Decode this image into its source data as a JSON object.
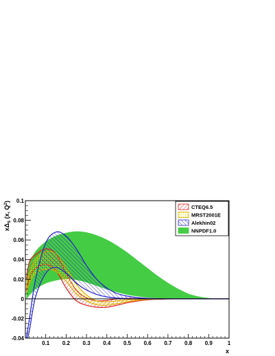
{
  "chart_data": {
    "type": "area",
    "xlabel": "x",
    "ylabel_parts": {
      "base": "xΔ",
      "sub": "s",
      "rest": " (x, Q",
      "sup": "2",
      "end": ")"
    },
    "xlim": [
      0,
      1
    ],
    "ylim": [
      -0.04,
      0.1
    ],
    "x_ticks": [
      0.1,
      0.2,
      0.3,
      0.4,
      0.5,
      0.6,
      0.7,
      0.8,
      0.9,
      1
    ],
    "x_tick_labels": [
      "0.1",
      "0.2",
      "0.3",
      "0.4",
      "0.5",
      "0.6",
      "0.7",
      "0.8",
      "0.9",
      "1"
    ],
    "y_ticks": [
      -0.04,
      -0.02,
      0,
      0.02,
      0.04,
      0.06,
      0.08,
      0.1
    ],
    "y_tick_labels": [
      "-0.04",
      "-0.02",
      "0",
      "0.02",
      "0.04",
      "0.06",
      "0.08",
      "0.1"
    ],
    "legend_position": "top-right",
    "series": [
      {
        "name": "NNPDF1.0",
        "style": "solid",
        "fill": "#44cc44",
        "edge": "#44cc44",
        "x": [
          0.005,
          0.02,
          0.05,
          0.1,
          0.15,
          0.2,
          0.25,
          0.3,
          0.35,
          0.4,
          0.45,
          0.5,
          0.55,
          0.6,
          0.65,
          0.7,
          0.75,
          0.8,
          0.85,
          0.9,
          0.95,
          1.0
        ],
        "upper": [
          0.025,
          0.036,
          0.048,
          0.058,
          0.064,
          0.067,
          0.0685,
          0.0675,
          0.0645,
          0.06,
          0.054,
          0.047,
          0.039,
          0.031,
          0.023,
          0.016,
          0.01,
          0.005,
          0.0022,
          0.0006,
          0.0001,
          0.0
        ],
        "lower": [
          0.0,
          0.004,
          0.01,
          0.016,
          0.019,
          0.0205,
          0.0195,
          0.017,
          0.0135,
          0.01,
          0.007,
          0.0045,
          0.0028,
          0.0016,
          0.0009,
          0.0005,
          0.0002,
          0.0001,
          0.0,
          0.0,
          0.0,
          0.0
        ]
      },
      {
        "name": "CTEQ6.5",
        "style": "hatch",
        "fill": "#dd2222",
        "edge": "#dd2222",
        "x": [
          0.005,
          0.02,
          0.05,
          0.1,
          0.15,
          0.2,
          0.25,
          0.3,
          0.35,
          0.4,
          0.45,
          0.5,
          0.55,
          0.6,
          0.65,
          0.7,
          0.75,
          0.8,
          0.85,
          0.9,
          0.95,
          1.0
        ],
        "upper": [
          0.02,
          0.038,
          0.045,
          0.051,
          0.046,
          0.026,
          0.009,
          0.001,
          -0.002,
          -0.0015,
          0.0,
          0.0005,
          0.0003,
          0.0001,
          0.0,
          0.0,
          0.0,
          0.0,
          0.0,
          0.0,
          0.0,
          0.0
        ],
        "lower": [
          0.008,
          0.021,
          0.031,
          0.035,
          0.029,
          0.011,
          -0.002,
          -0.0065,
          -0.0085,
          -0.0085,
          -0.0065,
          -0.004,
          -0.0022,
          -0.001,
          -0.0004,
          -0.0001,
          0.0,
          0.0,
          0.0,
          0.0,
          0.0,
          0.0
        ]
      },
      {
        "name": "MRST2001E",
        "style": "dots",
        "fill": "#e6e600",
        "edge": "#ddaa00",
        "x": [
          0.005,
          0.02,
          0.05,
          0.1,
          0.15,
          0.2,
          0.25,
          0.3,
          0.35,
          0.4,
          0.45,
          0.5,
          0.55,
          0.6,
          0.65,
          0.7,
          0.75,
          0.8,
          0.85,
          0.9,
          0.95,
          1.0
        ],
        "upper": [
          0.012,
          0.026,
          0.04,
          0.048,
          0.046,
          0.032,
          0.015,
          0.004,
          -0.002,
          -0.003,
          -0.002,
          -0.001,
          -0.0005,
          0.0,
          0.0,
          0.0,
          0.0,
          0.0,
          0.0,
          0.0,
          0.0,
          0.0
        ],
        "lower": [
          0.006,
          0.016,
          0.026,
          0.03,
          0.028,
          0.018,
          0.005,
          -0.002,
          -0.006,
          -0.0065,
          -0.005,
          -0.003,
          -0.0015,
          -0.0006,
          -0.0002,
          0.0,
          0.0,
          0.0,
          0.0,
          0.0,
          0.0,
          0.0
        ]
      },
      {
        "name": "Alekhin02",
        "style": "hatch",
        "fill": "#2222cc",
        "edge": "#2222cc",
        "x": [
          0.005,
          0.02,
          0.05,
          0.1,
          0.15,
          0.2,
          0.25,
          0.3,
          0.35,
          0.4,
          0.45,
          0.5,
          0.55,
          0.6,
          0.65,
          0.7,
          0.75,
          0.8,
          0.85,
          0.9,
          0.95,
          1.0
        ],
        "upper": [
          -0.04,
          -0.02,
          0.02,
          0.057,
          0.068,
          0.064,
          0.051,
          0.034,
          0.02,
          0.011,
          0.0055,
          0.0028,
          0.0013,
          0.0005,
          0.0002,
          0.0,
          0.0,
          0.0,
          0.0,
          0.0,
          0.0,
          0.0
        ],
        "lower": [
          -0.045,
          -0.032,
          0.002,
          0.026,
          0.032,
          0.026,
          0.016,
          0.009,
          0.0045,
          0.002,
          0.0008,
          0.0003,
          0.0001,
          0.0,
          0.0,
          0.0,
          0.0,
          0.0,
          0.0,
          0.0,
          0.0,
          0.0
        ]
      }
    ],
    "legend_order": [
      "CTEQ6.5",
      "MRST2001E",
      "Alekhin02",
      "NNPDF1.0"
    ]
  }
}
